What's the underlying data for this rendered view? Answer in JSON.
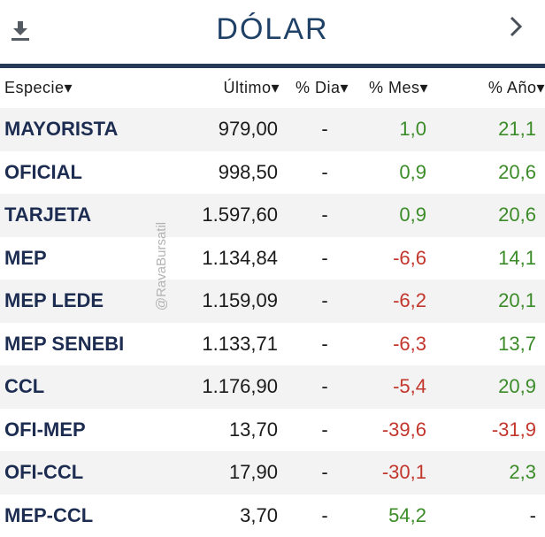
{
  "header": {
    "title": "DÓLAR",
    "download_icon": "download-icon",
    "next_icon": "chevron-right-icon"
  },
  "columns": [
    {
      "key": "name",
      "label": "Especie▾"
    },
    {
      "key": "last",
      "label": "Último▾"
    },
    {
      "key": "dia",
      "label": "% Dia▾"
    },
    {
      "key": "mes",
      "label": "% Mes▾"
    },
    {
      "key": "anio",
      "label": "% Año▾"
    }
  ],
  "rows": [
    {
      "name": "MAYORISTA",
      "last": "979,00",
      "dia": "-",
      "mes": "1,0",
      "anio": "21,1"
    },
    {
      "name": "OFICIAL",
      "last": "998,50",
      "dia": "-",
      "mes": "0,9",
      "anio": "20,6"
    },
    {
      "name": "TARJETA",
      "last": "1.597,60",
      "dia": "-",
      "mes": "0,9",
      "anio": "20,6"
    },
    {
      "name": "MEP",
      "last": "1.134,84",
      "dia": "-",
      "mes": "-6,6",
      "anio": "14,1"
    },
    {
      "name": "MEP LEDE",
      "last": "1.159,09",
      "dia": "-",
      "mes": "-6,2",
      "anio": "20,1"
    },
    {
      "name": "MEP SENEBI",
      "last": "1.133,71",
      "dia": "-",
      "mes": "-6,3",
      "anio": "13,7"
    },
    {
      "name": "CCL",
      "last": "1.176,90",
      "dia": "-",
      "mes": "-5,4",
      "anio": "20,9"
    },
    {
      "name": "OFI-MEP",
      "last": "13,70",
      "dia": "-",
      "mes": "-39,6",
      "anio": "-31,9"
    },
    {
      "name": "OFI-CCL",
      "last": "17,90",
      "dia": "-",
      "mes": "-30,1",
      "anio": "2,3"
    },
    {
      "name": "MEP-CCL",
      "last": "3,70",
      "dia": "-",
      "mes": "54,2",
      "anio": "-"
    }
  ],
  "watermark": "@RavaBursatil",
  "colors": {
    "title": "#1f4167",
    "rule": "#253a56",
    "positive": "#3b8c28",
    "negative": "#c2362c",
    "stripe": "#f3f3f3"
  }
}
